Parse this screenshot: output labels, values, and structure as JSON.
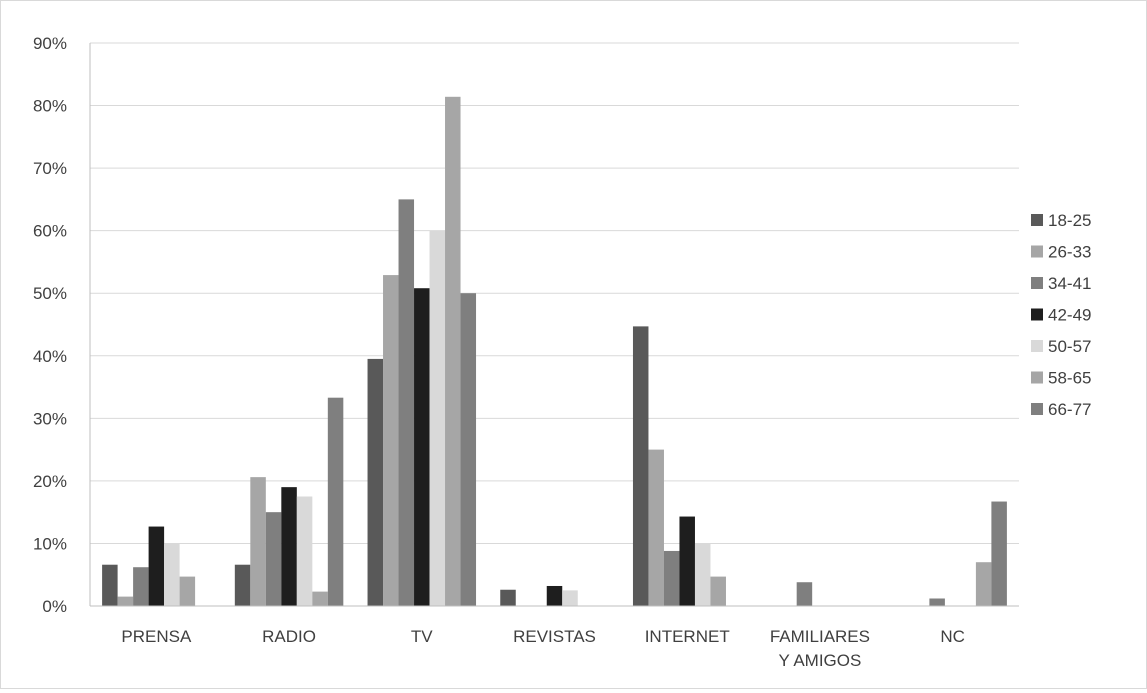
{
  "chart_data": {
    "type": "bar",
    "categories": [
      "PRENSA",
      "RADIO",
      "TV",
      "REVISTAS",
      "INTERNET",
      "FAMILIARES Y AMIGOS",
      "NC"
    ],
    "category_lines": [
      [
        "PRENSA"
      ],
      [
        "RADIO"
      ],
      [
        "TV"
      ],
      [
        "REVISTAS"
      ],
      [
        "INTERNET"
      ],
      [
        "FAMILIARES",
        "Y AMIGOS"
      ],
      [
        "NC"
      ]
    ],
    "series": [
      {
        "name": "18-25",
        "color": "#595959",
        "values": [
          6.6,
          6.6,
          39.5,
          2.6,
          44.7,
          0,
          0
        ]
      },
      {
        "name": "26-33",
        "color": "#a6a6a6",
        "values": [
          1.5,
          20.6,
          52.9,
          0,
          25.0,
          0,
          0
        ]
      },
      {
        "name": "34-41",
        "color": "#7f7f7f",
        "values": [
          6.2,
          15.0,
          65.0,
          0,
          8.8,
          3.8,
          1.2
        ]
      },
      {
        "name": "42-49",
        "color": "#1e1e1e",
        "values": [
          12.7,
          19.0,
          50.8,
          3.2,
          14.3,
          0,
          0
        ]
      },
      {
        "name": "50-57",
        "color": "#d9d9d9",
        "values": [
          10.0,
          17.5,
          60.0,
          2.5,
          10.0,
          0,
          0
        ]
      },
      {
        "name": "58-65",
        "color": "#a6a6a6",
        "values": [
          4.7,
          2.3,
          81.4,
          0,
          4.7,
          0,
          7.0
        ]
      },
      {
        "name": "66-77",
        "color": "#7f7f7f",
        "values": [
          0,
          33.3,
          50.0,
          0,
          0,
          0,
          16.7
        ]
      }
    ],
    "ylim": [
      0,
      90
    ],
    "y_ticks": [
      "0%",
      "10%",
      "20%",
      "30%",
      "40%",
      "50%",
      "60%",
      "70%",
      "80%",
      "90%"
    ],
    "grid": true,
    "legend_position": "right"
  }
}
